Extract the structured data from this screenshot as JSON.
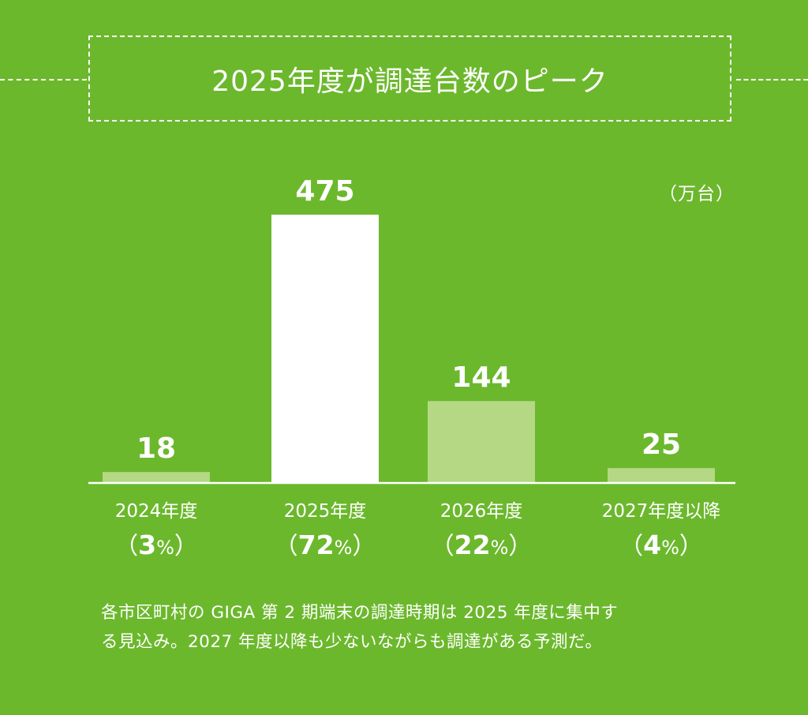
{
  "chart_data": {
    "type": "bar",
    "title": "2025年度が調達台数のピーク",
    "unit": "（万台）",
    "categories": [
      "2024年度",
      "2025年度",
      "2026年度",
      "2027年度以降"
    ],
    "values": [
      18,
      475,
      144,
      25
    ],
    "value_labels": [
      "18",
      "475",
      "144",
      "25"
    ],
    "percent_numbers": [
      "3",
      "72",
      "22",
      "4"
    ],
    "percent_sign": "%",
    "paren_open": "（",
    "paren_close": "）",
    "ylim": [
      0,
      475
    ],
    "grid": false,
    "colors": {
      "highlight": "#ffffff",
      "normal": "#b4d884",
      "background": "#6cb82d",
      "axis": "#ffffff",
      "text": "#ffffff"
    }
  },
  "caption": {
    "line1": "各市区町村の GIGA 第 2 期端末の調達時期は 2025 年度に集中す",
    "line2": "る見込み。2027 年度以降も少ないながらも調達がある予測だ。"
  }
}
